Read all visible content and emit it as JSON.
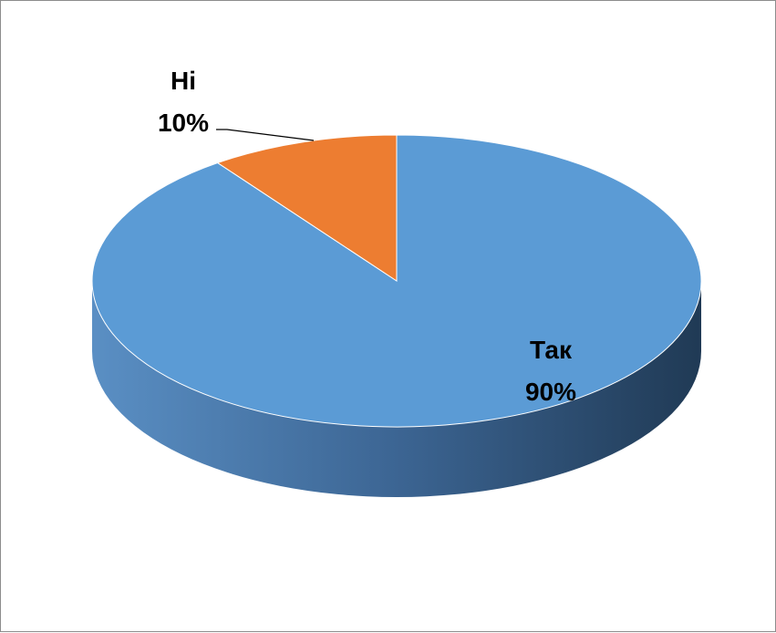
{
  "chart_data": {
    "type": "pie",
    "style": "3d",
    "categories": [
      "Так",
      "Ні"
    ],
    "values": [
      90,
      10
    ],
    "value_labels": [
      "90%",
      "10%"
    ],
    "colors": [
      "#5B9BD5",
      "#ED7D31"
    ],
    "legend": "none",
    "title": ""
  }
}
